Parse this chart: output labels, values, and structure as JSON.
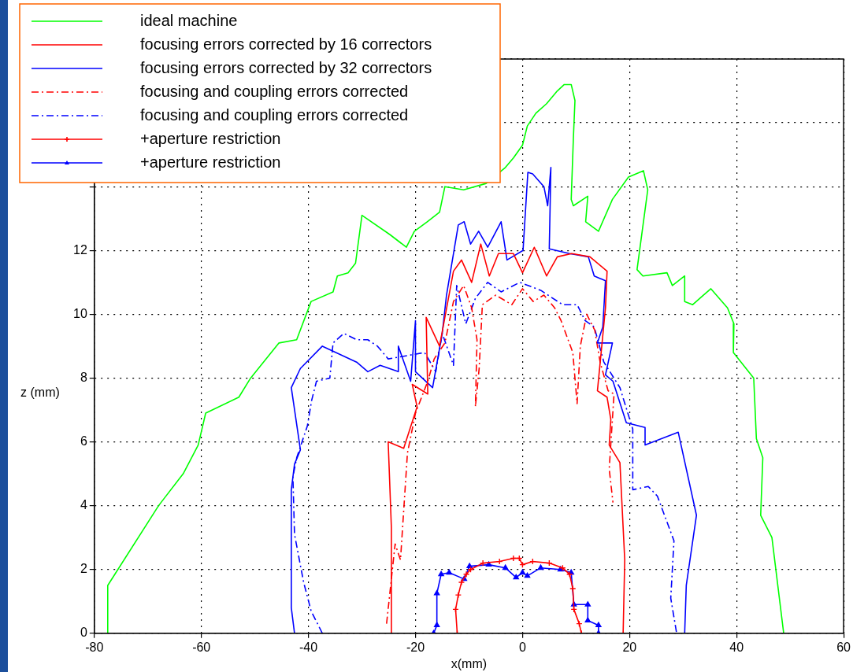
{
  "chart_data": {
    "type": "line",
    "xlabel": "x(mm)",
    "ylabel": "z (mm)",
    "xlim": [
      -80,
      60
    ],
    "xticks": [
      -80,
      -60,
      -40,
      -20,
      0,
      20,
      40,
      60
    ],
    "ylim": [
      0,
      18
    ],
    "yticks": [
      0,
      2,
      4,
      6,
      8,
      10,
      12,
      {
        "value": 14,
        "label": null
      },
      {
        "value": 16,
        "label": null
      },
      {
        "value": 18,
        "label": null
      }
    ],
    "grid": true,
    "legend": "top left",
    "series": [
      {
        "name": "ideal machine",
        "color": "#00ff00",
        "line_style": "solid",
        "marker": "none",
        "x": [
          -77.5,
          -77.5,
          -68,
          -63.4,
          -60.6,
          -59.2,
          -53,
          -50.8,
          -45.5,
          -42.2,
          -39.5,
          -35.4,
          -34.6,
          -32.6,
          -31.2,
          -30,
          -24.8,
          -21.7,
          -20.2,
          -17.8,
          -15.5,
          -15,
          -14.5,
          -11,
          -6.8,
          -3.2,
          -1.7,
          0,
          0.9,
          2.5,
          4.5,
          6.5,
          7.8,
          9.1,
          9.8,
          9.5,
          9.1,
          9.5,
          12.2,
          11.8,
          14.2,
          16.8,
          19.8,
          22.6,
          23.4,
          21.4,
          22.5,
          27,
          28,
          30.3,
          30.3,
          31.8,
          33.8,
          35.2,
          38.3,
          39.5,
          39.4,
          43.2,
          43.7,
          44.9,
          44.5,
          46.6,
          48.8
        ],
        "values": [
          0,
          1.5,
          4.0,
          5.0,
          5.9,
          6.9,
          7.4,
          8.0,
          9.1,
          9.2,
          10.4,
          10.7,
          11.2,
          11.3,
          11.6,
          13.1,
          12.5,
          12.1,
          12.6,
          12.9,
          13.2,
          13.6,
          14.0,
          13.9,
          14.1,
          14.6,
          14.9,
          15.3,
          15.9,
          16.3,
          16.6,
          17.0,
          17.2,
          17.2,
          16.7,
          15.5,
          13.6,
          13.4,
          13.7,
          12.9,
          12.6,
          13.6,
          14.3,
          14.5,
          13.9,
          11.4,
          11.2,
          11.3,
          10.9,
          11.2,
          10.4,
          10.3,
          10.6,
          10.8,
          10.2,
          9.7,
          8.8,
          8.0,
          6.1,
          5.5,
          3.7,
          3.0,
          0
        ]
      },
      {
        "name": "focusing errors corrected by 16 correctors",
        "color": "#ff0000",
        "line_style": "solid",
        "marker": "none",
        "x": [
          -24.5,
          -24.5,
          -25.1,
          -22.2,
          -19.7,
          -20.6,
          -17.7,
          -18,
          -15.5,
          -12.9,
          -11.4,
          -9.5,
          -7.8,
          -6.2,
          -4.5,
          -1.7,
          0,
          2.2,
          4.5,
          6.5,
          9.2,
          12.6,
          15.8,
          15.5,
          14,
          15.8,
          16.5,
          16.2,
          18.2,
          19.1,
          18.8
        ],
        "values": [
          0,
          3.3,
          6.0,
          5.8,
          7.1,
          7.8,
          7.5,
          9.9,
          9.0,
          11.35,
          11.7,
          11.0,
          12.2,
          11.2,
          11.9,
          11.9,
          11.3,
          12.1,
          11.2,
          11.8,
          11.9,
          11.8,
          11.35,
          10.2,
          7.6,
          7.4,
          6.7,
          5.9,
          5.35,
          2.3,
          0
        ]
      },
      {
        "name": "focusing errors corrected by 32 correctors",
        "color": "#0000ff",
        "line_style": "solid",
        "marker": "none",
        "x": [
          -42.6,
          -43.2,
          -43.2,
          -42.6,
          -41.5,
          -43.2,
          -41.5,
          -37.4,
          -31,
          -28.9,
          -26.6,
          -23.2,
          -23.2,
          -20.9,
          -20,
          -20,
          -16.8,
          -15,
          -14.2,
          -12,
          -10.9,
          -9.7,
          -8.2,
          -6.5,
          -4,
          -2.9,
          0.1,
          1.0,
          1.9,
          4,
          4.7,
          5.3,
          5,
          8.8,
          12.3,
          13.4,
          15.5,
          15,
          14,
          16.8,
          15.5,
          16.9,
          19.4,
          22.9,
          22.9,
          29.1,
          32.5,
          30.6,
          30.3
        ],
        "values": [
          0,
          0.8,
          4.5,
          5.3,
          5.75,
          7.7,
          8.3,
          9.0,
          8.5,
          8.2,
          8.4,
          8.2,
          9.0,
          7.9,
          9.8,
          8.2,
          7.7,
          9.4,
          10.6,
          12.8,
          12.9,
          12.2,
          12.6,
          12.1,
          12.9,
          11.7,
          12.0,
          14.45,
          14.4,
          14.0,
          13.4,
          14.6,
          12.05,
          11.9,
          11.8,
          11.2,
          11.05,
          9.6,
          9.1,
          9.1,
          8.1,
          7.9,
          6.6,
          6.45,
          5.9,
          6.3,
          3.7,
          1.5,
          0
        ]
      },
      {
        "name": "focusing and coupling errors corrected",
        "color": "#ff0000",
        "line_style": "dashed",
        "marker": "none",
        "x": [
          -25.4,
          -23.8,
          -22.8,
          -21.5,
          -20,
          -17.7,
          -16.5,
          -14.5,
          -12.9,
          -11,
          -9.5,
          -8.5,
          -8.8,
          -8.1,
          -7.5,
          -5,
          -2,
          0,
          2,
          4,
          6,
          7.2,
          9.4,
          10.2,
          10.8,
          12,
          13.5,
          14.5,
          16,
          17.1,
          16.2,
          16.9
        ],
        "values": [
          0.3,
          2.8,
          2.3,
          5.65,
          6.9,
          7.9,
          8.6,
          9.1,
          10.4,
          10.9,
          10.2,
          9.2,
          7.1,
          8.3,
          10.3,
          10.6,
          10.3,
          10.8,
          10.4,
          10.6,
          10.2,
          9.8,
          8.8,
          7.2,
          9.0,
          10.0,
          9.5,
          8.5,
          7.6,
          7.5,
          5.15,
          4.1
        ]
      },
      {
        "name": "focusing and coupling errors corrected",
        "color": "#0000ff",
        "line_style": "dashed",
        "marker": "none",
        "x": [
          -37.4,
          -39.5,
          -40.9,
          -42.6,
          -42.9,
          -42.2,
          -40.2,
          -39.4,
          -38.5,
          -36,
          -35.4,
          -33.4,
          -31,
          -28.9,
          -27.1,
          -25.1,
          -18.3,
          -16.2,
          -15,
          -12.9,
          -12.3,
          -10.6,
          -8.8,
          -6.5,
          -4,
          -0.5,
          3.4,
          7.5,
          10.2,
          11.7,
          13.4,
          15.2,
          18.2,
          20.6,
          20.6,
          23.5,
          25.2,
          28.3,
          27.7,
          28.8
        ],
        "values": [
          0,
          0.7,
          1.6,
          3.1,
          4.9,
          5.5,
          6.5,
          7.3,
          7.9,
          8.0,
          9.1,
          9.4,
          9.2,
          9.2,
          9.0,
          8.6,
          8.8,
          8.2,
          9.4,
          8.4,
          10.9,
          9.7,
          10.5,
          11.0,
          10.7,
          11.0,
          10.75,
          10.3,
          10.3,
          9.8,
          9.6,
          8.5,
          7.7,
          6.4,
          4.5,
          4.6,
          4.3,
          2.9,
          1.1,
          0
        ]
      },
      {
        "name": "+aperture restriction",
        "color": "#ff0000",
        "line_style": "solid",
        "marker": "cross",
        "x": [
          -12.2,
          -12.5,
          -12,
          -11.4,
          -10.5,
          -9.7,
          -7.4,
          -4.3,
          -1.7,
          -0.6,
          0,
          1.9,
          5,
          7.5,
          8.8,
          9.4,
          9.6,
          10.6,
          11
        ],
        "values": [
          0,
          0.75,
          1.2,
          1.6,
          1.85,
          2.0,
          2.2,
          2.25,
          2.35,
          2.35,
          2.15,
          2.25,
          2.2,
          2.05,
          1.85,
          1.4,
          0.75,
          0.3,
          0
        ]
      },
      {
        "name": "+aperture restriction",
        "color": "#0000ff",
        "line_style": "solid",
        "marker": "triangle",
        "x": [
          -16.6,
          -16,
          -16,
          -15.2,
          -13.7,
          -10.9,
          -9.9,
          -6.3,
          -3.2,
          -1.2,
          0,
          0.9,
          3.4,
          7.1,
          9.1,
          9.6,
          12.2,
          12.2,
          14.2,
          14.2
        ],
        "values": [
          0,
          0.25,
          1.25,
          1.85,
          1.9,
          1.7,
          2.1,
          2.15,
          2.05,
          1.75,
          1.9,
          1.8,
          2.05,
          2.0,
          1.9,
          0.9,
          0.9,
          0.4,
          0.25,
          0
        ]
      }
    ]
  }
}
